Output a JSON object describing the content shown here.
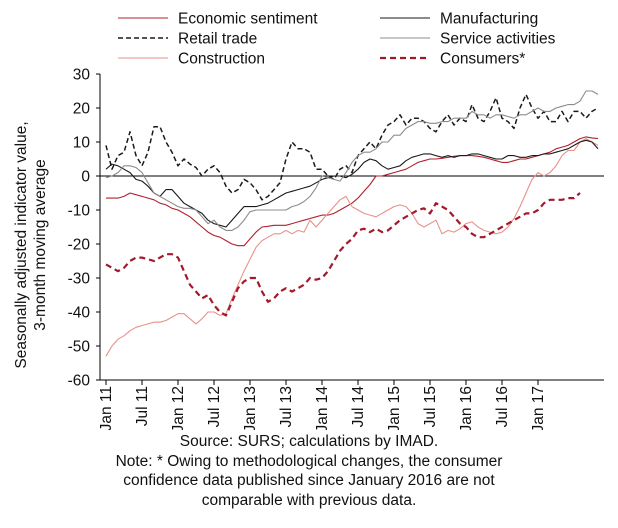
{
  "chart_data": {
    "type": "line",
    "ylabel": "Seasonally adjusted indicator value, 3-month moving average",
    "ylim": [
      -60,
      30
    ],
    "yticks": [
      30,
      20,
      10,
      0,
      -10,
      -20,
      -30,
      -40,
      -50,
      -60
    ],
    "xticks": [
      "Jan 11",
      "Jul 11",
      "Jan 12",
      "Jul 12",
      "Jan 13",
      "Jul 13",
      "Jan 14",
      "Jul 14",
      "Jan 15",
      "Jul 15",
      "Jan 16",
      "Jul 16",
      "Jan 17"
    ],
    "x_start": "2011-01",
    "legend_position": "top",
    "series": [
      {
        "name": "Economic sentiment",
        "color": "#b0202e",
        "dash": "solid",
        "width": 1.1,
        "values": [
          -6.5,
          -6.5,
          -6.5,
          -6,
          -5,
          -5.5,
          -6,
          -6.5,
          -7,
          -8,
          -8.5,
          -9.5,
          -10,
          -11,
          -12,
          -13.5,
          -15,
          -16.5,
          -17.5,
          -18,
          -19,
          -20,
          -20.5,
          -20.5,
          -18.5,
          -16.5,
          -15,
          -14.8,
          -14.5,
          -14.5,
          -14.5,
          -14,
          -13.5,
          -13,
          -12.5,
          -12,
          -11.5,
          -11.5,
          -11,
          -10,
          -9,
          -8,
          -6.5,
          -4.5,
          -2.5,
          0,
          0,
          0.5,
          1,
          1.5,
          2,
          3,
          4,
          4.5,
          5,
          5,
          5.2,
          5.5,
          5.8,
          6,
          6,
          6,
          5.8,
          5.5,
          5,
          4.5,
          4,
          4,
          4.5,
          5,
          5,
          5.5,
          6,
          6.5,
          7,
          8,
          8.5,
          9,
          10,
          11,
          11.5,
          11.2,
          11
        ]
      },
      {
        "name": "Retail trade",
        "color": "#1a1a1a",
        "dash": "5,3",
        "width": 1.5,
        "values": [
          9,
          2,
          6,
          7,
          13,
          6,
          3,
          7,
          14.5,
          14.5,
          10,
          7,
          3,
          5,
          3.5,
          2.5,
          0,
          2,
          3,
          1,
          -3,
          -5,
          -4,
          -1,
          -2,
          -4,
          -7,
          -6,
          -4,
          -2,
          5,
          10,
          8,
          8,
          7,
          2,
          2,
          0,
          -1,
          2,
          3,
          1,
          6,
          8,
          10,
          8,
          12,
          15,
          16,
          18,
          15,
          17,
          17,
          16,
          14,
          13,
          16,
          18,
          15,
          17,
          16,
          21,
          17,
          16,
          19,
          23,
          17,
          16,
          14,
          20,
          24,
          20,
          17,
          19,
          16,
          16,
          19,
          16,
          19,
          19,
          17,
          19,
          20
        ]
      },
      {
        "name": "Construction",
        "color": "#e8918b",
        "dash": "solid",
        "width": 1.1,
        "values": [
          -53,
          -50,
          -48,
          -47,
          -45.5,
          -44.5,
          -44,
          -43.5,
          -43,
          -43,
          -42.5,
          -41.5,
          -40.5,
          -40.5,
          -42,
          -43.5,
          -42,
          -40,
          -40,
          -41,
          -40.5,
          -36,
          -32,
          -28,
          -24.5,
          -21,
          -19,
          -18,
          -17,
          -17,
          -16,
          -17,
          -16,
          -16.5,
          -13,
          -15,
          -13,
          -11,
          -9,
          -7,
          -6,
          -9,
          -10,
          -11,
          -11.5,
          -12,
          -11,
          -10,
          -9,
          -8.5,
          -9,
          -11,
          -14,
          -15,
          -14,
          -13,
          -17,
          -16,
          -16.5,
          -15.5,
          -14,
          -13.5,
          -15,
          -16,
          -16.5,
          -17,
          -16.5,
          -15,
          -12.5,
          -9,
          -5,
          -1,
          1,
          0,
          1,
          3,
          6,
          7.5,
          7.5,
          10,
          11,
          10,
          9
        ]
      },
      {
        "name": "Manufacturing",
        "color": "#1a1a1a",
        "dash": "solid",
        "width": 1.1,
        "values": [
          2,
          3.5,
          3,
          2,
          1,
          -1,
          -1.5,
          -3,
          -5,
          -6,
          -4,
          -4,
          -6,
          -8,
          -9,
          -10,
          -11,
          -13,
          -14,
          -14.5,
          -15,
          -13,
          -11,
          -9,
          -9,
          -9,
          -8.5,
          -8,
          -7,
          -6,
          -5,
          -4.5,
          -4,
          -3.5,
          -3,
          -2,
          -1,
          -0.5,
          0,
          0,
          -0.5,
          0.5,
          2,
          4,
          5,
          4.5,
          3,
          2,
          2.5,
          3,
          4.5,
          5.5,
          6,
          6.5,
          6.5,
          6,
          5.5,
          6,
          5.5,
          6,
          6,
          6.5,
          6.5,
          6,
          5.5,
          5,
          5,
          6,
          6,
          5.5,
          5.5,
          6,
          6,
          6.5,
          6.5,
          7,
          7.5,
          8,
          9,
          10,
          10.5,
          10,
          8
        ]
      },
      {
        "name": "Service activities",
        "color": "#8c8c8c",
        "dash": "solid",
        "width": 1.1,
        "values": [
          -0.5,
          0,
          1,
          3,
          3,
          2.5,
          1,
          -2,
          -5,
          -6,
          -7,
          -8,
          -9,
          -9.5,
          -9.5,
          -10,
          -12,
          -14,
          -13,
          -15,
          -16,
          -16,
          -15,
          -13,
          -10.5,
          -10,
          -10,
          -10,
          -10,
          -10,
          -10,
          -9,
          -8.5,
          -7.5,
          -6,
          -3.5,
          0,
          -0.5,
          -1,
          -1.5,
          1,
          4,
          6,
          7,
          7,
          8,
          10,
          10,
          12,
          12,
          14,
          15,
          16,
          16,
          15.5,
          15.5,
          16,
          16,
          17,
          17,
          17,
          19,
          18,
          18,
          17,
          18,
          18,
          17.5,
          17,
          18,
          18,
          19,
          20,
          19,
          19,
          20,
          20.5,
          21,
          21,
          22,
          25,
          25,
          24
        ]
      },
      {
        "name": "Consumers*",
        "color": "#a3192c",
        "dash": "6,4",
        "width": 2.2,
        "values": [
          -26,
          -27,
          -28,
          -27,
          -25,
          -24,
          -24,
          -24.5,
          -25,
          -24,
          -23,
          -23,
          -24,
          -28,
          -32,
          -34,
          -36,
          -35,
          -38,
          -40,
          -41,
          -37,
          -33,
          -31,
          -30,
          -30,
          -34,
          -37,
          -36,
          -34,
          -33,
          -34,
          -33,
          -32,
          -30,
          -30.5,
          -30,
          -28,
          -25,
          -22,
          -20,
          -18.5,
          -16,
          -15.5,
          -16.5,
          -15.5,
          -16.5,
          -16,
          -14.5,
          -13,
          -12,
          -11,
          -10,
          -9.5,
          -11,
          -8,
          -9,
          -10,
          -12,
          -14,
          -15,
          -17,
          -18,
          -18,
          -17,
          -16,
          -15,
          -14,
          -13,
          -12,
          -11,
          -11,
          -10,
          -8,
          -7,
          -7,
          -7,
          -6.5,
          -6.5,
          -5
        ]
      }
    ]
  },
  "notes": {
    "source": "Source: SURS; calculations by IMAD.",
    "note_line1": "Note: * Owing to methodological changes, the consumer",
    "note_line2": "confidence data published since January 2016 are not",
    "note_line3": "comparable with previous data."
  }
}
